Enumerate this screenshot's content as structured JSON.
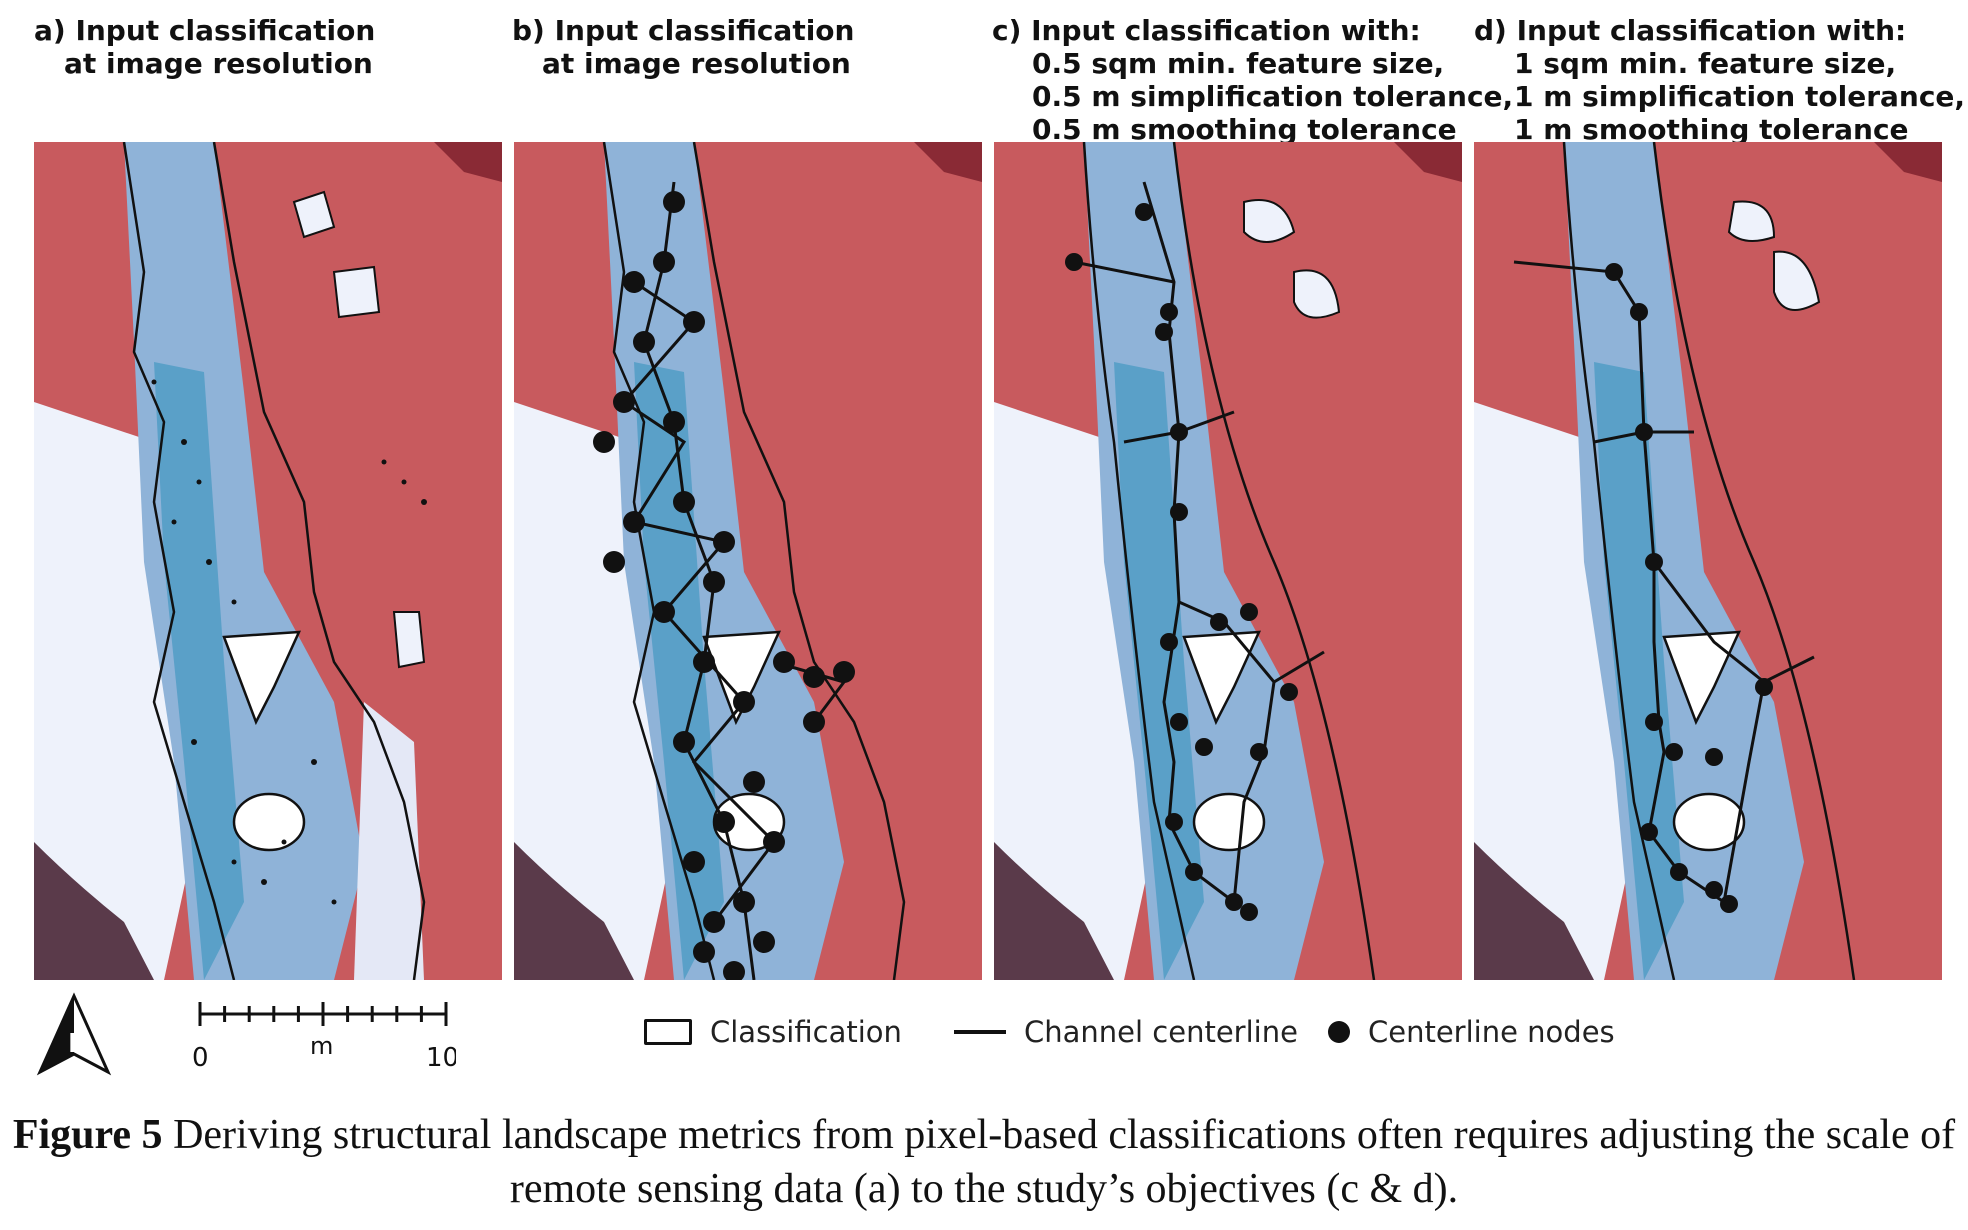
{
  "panels": [
    {
      "id": "a",
      "lines": [
        "a) Input classification",
        "at image resolution"
      ]
    },
    {
      "id": "b",
      "lines": [
        "b) Input classification",
        "at image resolution"
      ]
    },
    {
      "id": "c",
      "lines": [
        "c) Input classification with:",
        "0.5 sqm min. feature size,",
        "0.5 m simplification tolerance,",
        "0.5 m smoothing tolerance"
      ]
    },
    {
      "id": "d",
      "lines": [
        "d) Input classification with:",
        "1 sqm min. feature size,",
        "1 m simplification tolerance,",
        "1 m smoothing tolerance"
      ]
    }
  ],
  "north_arrow": {
    "label": "N"
  },
  "scale_bar": {
    "start": "0",
    "unit": "m",
    "end": "10"
  },
  "legend": {
    "classification": "Classification",
    "centerline": "Channel centerline",
    "nodes": "Centerline nodes"
  },
  "caption": {
    "label": "Figure 5",
    "text": " Deriving structural landscape metrics from pixel-based classifications often requires adjusting the scale of remote sensing data (a) to the study’s objectives (c & d)."
  },
  "colors": {
    "vegetation": "#c85a5e",
    "vegetation_dark": "#8a2a35",
    "water": "#8fb3d8",
    "channel": "#5aa0c8",
    "bright": "#eef2fb",
    "outline": "#111111"
  }
}
